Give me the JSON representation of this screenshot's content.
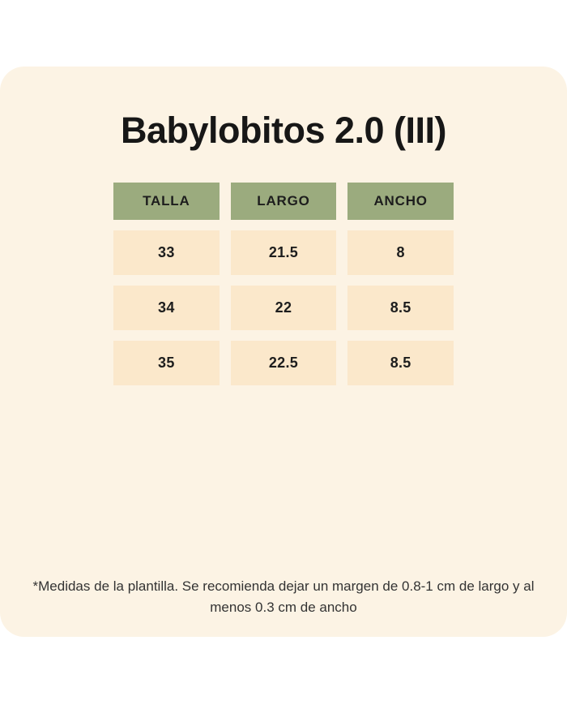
{
  "chart_data": {
    "type": "table",
    "title": "Babylobitos 2.0 (III)",
    "columns": [
      "TALLA",
      "LARGO",
      "ANCHO"
    ],
    "rows": [
      [
        33,
        21.5,
        8
      ],
      [
        34,
        22,
        8.5
      ],
      [
        35,
        22.5,
        8.5
      ]
    ],
    "footnote": "*Medidas de la plantilla. Se recomienda dejar un margen de 0.8-1 cm de largo y al menos 0.3 cm de ancho",
    "legend": "none",
    "grid": "off"
  },
  "colors": {
    "card_bg": "#FCF3E4",
    "header_bg": "#9BAB7E",
    "cell_bg": "#FBE8CB",
    "title_text": "#171717",
    "cell_text": "#1D1D1D",
    "footnote_text": "#333333"
  }
}
